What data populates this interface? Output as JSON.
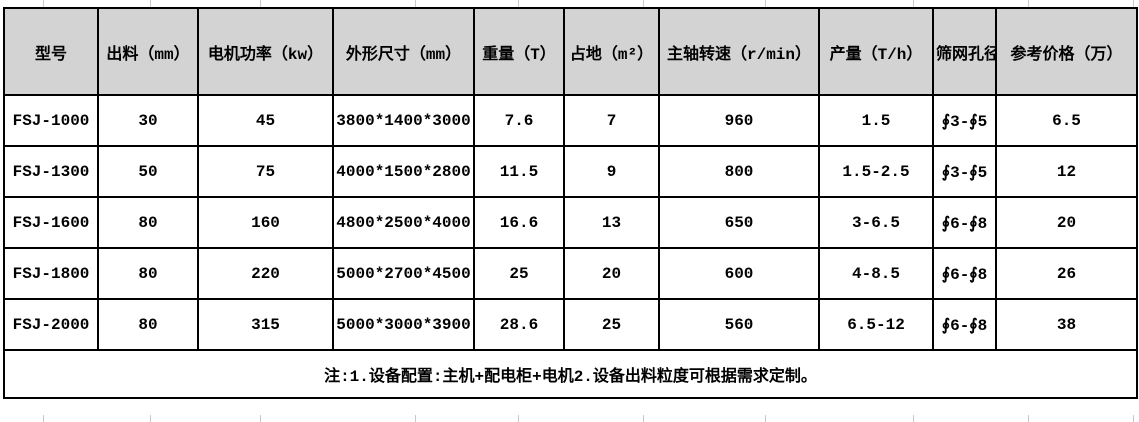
{
  "table": {
    "columns": [
      "型号",
      "出料（mm）",
      "电机功率（kw）",
      "外形尺寸（mm）",
      "重量（T）",
      "占地（m²）",
      "主轴转速（r/min）",
      "产量（T/h）",
      "筛网孔径",
      "参考价格（万）"
    ],
    "rows": [
      [
        "FSJ-1000",
        "30",
        "45",
        "3800*1400*3000",
        "7.6",
        "7",
        "960",
        "1.5",
        "∮3-∮5",
        "6.5"
      ],
      [
        "FSJ-1300",
        "50",
        "75",
        "4000*1500*2800",
        "11.5",
        "9",
        "800",
        "1.5-2.5",
        "∮3-∮5",
        "12"
      ],
      [
        "FSJ-1600",
        "80",
        "160",
        "4800*2500*4000",
        "16.6",
        "13",
        "650",
        "3-6.5",
        "∮6-∮8",
        "20"
      ],
      [
        "FSJ-1800",
        "80",
        "220",
        "5000*2700*4500",
        "25",
        "20",
        "600",
        "4-8.5",
        "∮6-∮8",
        "26"
      ],
      [
        "FSJ-2000",
        "80",
        "315",
        "5000*3000*3900",
        "28.6",
        "25",
        "560",
        "6.5-12",
        "∮6-∮8",
        "38"
      ]
    ],
    "note": "注:1.设备配置:主机+配电柜+电机2.设备出料粒度可根据需求定制。"
  },
  "colors": {
    "header_background": "#d3d3d3",
    "border": "#000000",
    "text": "#000000",
    "sheet_gridline": "#c9c9c9"
  }
}
